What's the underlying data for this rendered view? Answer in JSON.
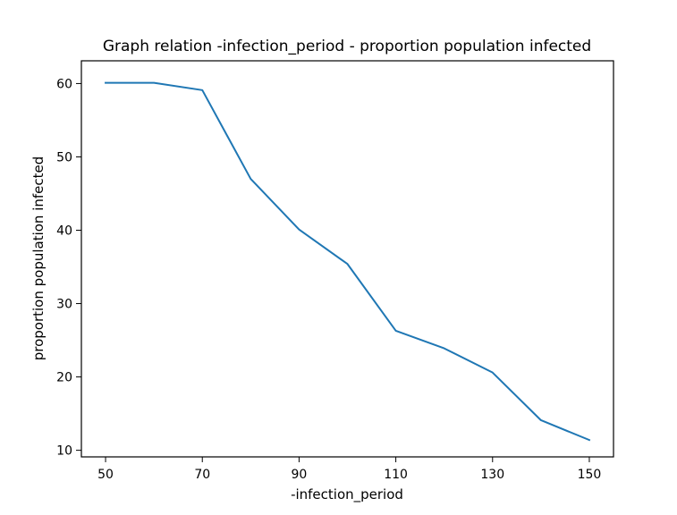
{
  "chart_data": {
    "type": "line",
    "title": "Graph relation -infection_period - proportion population infected",
    "xlabel": "-infection_period",
    "ylabel": "proportion population infected",
    "x": [
      50,
      60,
      70,
      80,
      90,
      100,
      110,
      120,
      130,
      140,
      150
    ],
    "series": [
      {
        "values": [
          60.1,
          60.1,
          59.1,
          47.0,
          40.1,
          35.4,
          26.3,
          23.9,
          20.6,
          14.1,
          11.4
        ],
        "color": "#1f77b4"
      }
    ],
    "xlim": [
      45,
      155
    ],
    "ylim": [
      9.1,
      63.1
    ],
    "xticks": [
      50,
      70,
      90,
      110,
      130,
      150
    ],
    "yticks": [
      10,
      20,
      30,
      40,
      50,
      60
    ],
    "grid": false,
    "legend": "none"
  }
}
